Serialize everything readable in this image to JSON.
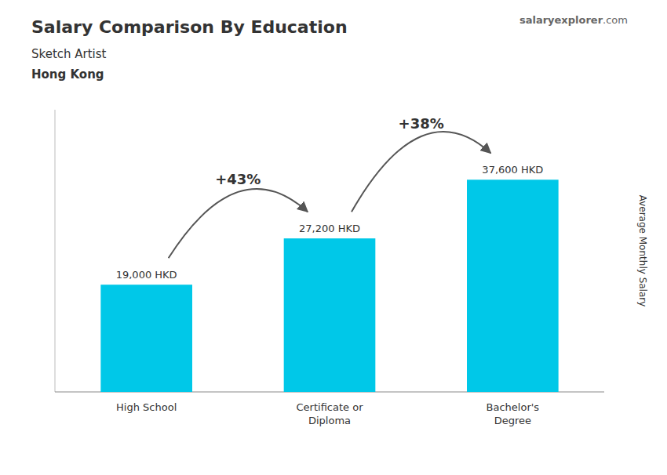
{
  "chart_data": {
    "type": "bar",
    "title": "Salary Comparison By Education",
    "subtitle": "Sketch Artist",
    "location": "Hong Kong",
    "watermark": [
      "salary",
      "explorer",
      ".com"
    ],
    "ylabel": "Average Monthly Salary",
    "categories": [
      "High School",
      "Certificate or\nDiploma",
      "Bachelor's\nDegree"
    ],
    "values": [
      19000,
      27200,
      37600
    ],
    "value_labels": [
      "19,000 HKD",
      "27,200 HKD",
      "37,600 HKD"
    ],
    "annotations": [
      "+43%",
      "+38%"
    ],
    "color": "#00c8e8",
    "ylim": [
      0,
      50000
    ],
    "yticks": [],
    "tick_labels": "x",
    "data_labels": true,
    "grid": false
  }
}
